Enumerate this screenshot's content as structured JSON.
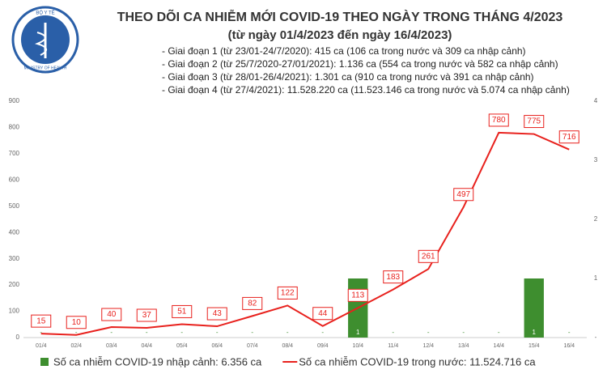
{
  "logo": {
    "top": "BỘ Y TẾ",
    "bottom": "MINISTRY OF HEALTH"
  },
  "chart_data": {
    "type": "combo",
    "title": "THEO DÕI CA NHIỄM MỚI COVID-19 THEO NGÀY TRONG THÁNG 4/2023",
    "subtitle": "(từ ngày 01/4/2023 đến ngày 16/4/2023)",
    "annotations": [
      "- Giai đoạn 1 (từ 23/01-24/7/2020): 415 ca (106 ca trong nước và 309 ca nhập cảnh)",
      "- Giai đoạn 2 (từ 25/7/2020-27/01/2021): 1.136 ca (554 ca trong nước và 582 ca nhập cảnh)",
      "- Giai đoạn 3 (từ 28/01-26/4/2021): 1.301 ca (910 ca trong nước và 391 ca nhập cảnh)",
      "- Giai đoạn 4 (từ 27/4/2021): 11.528.220 ca (11.523.146 ca trong nước và 5.074 ca nhập cảnh)"
    ],
    "categories": [
      "01/4",
      "02/4",
      "03/4",
      "04/4",
      "05/4",
      "06/4",
      "07/4",
      "08/4",
      "09/4",
      "10/4",
      "11/4",
      "12/4",
      "13/4",
      "14/4",
      "15/4",
      "16/4"
    ],
    "ylim": [
      0,
      900
    ],
    "yticks": [
      0,
      100,
      200,
      300,
      400,
      500,
      600,
      700,
      800,
      900
    ],
    "y2lim": [
      0,
      4
    ],
    "y2ticks": [
      {
        "value": 0,
        "label": "-"
      },
      1,
      2,
      3,
      4
    ],
    "legend": "bottom",
    "series": [
      {
        "name": "Số ca nhiễm COVID-19 nhập cảnh: 6.356 ca",
        "color": "#3e8e2f",
        "type": "bar",
        "axis": "y2",
        "values": [
          0,
          0,
          0,
          0,
          0,
          0,
          0,
          0,
          0,
          1,
          0,
          0,
          0,
          0,
          1,
          0
        ],
        "value_labels": [
          "-",
          "-",
          "-",
          "-",
          "-",
          "-",
          "-",
          "-",
          "-",
          "1",
          "-",
          "-",
          "-",
          "-",
          "1",
          "-"
        ]
      },
      {
        "name": "Số ca nhiễm COVID-19 trong nước: 11.524.716 ca",
        "color": "#e8211d",
        "type": "line",
        "values": [
          15,
          10,
          40,
          37,
          51,
          43,
          82,
          122,
          44,
          113,
          183,
          261,
          497,
          780,
          775,
          716
        ]
      }
    ]
  }
}
